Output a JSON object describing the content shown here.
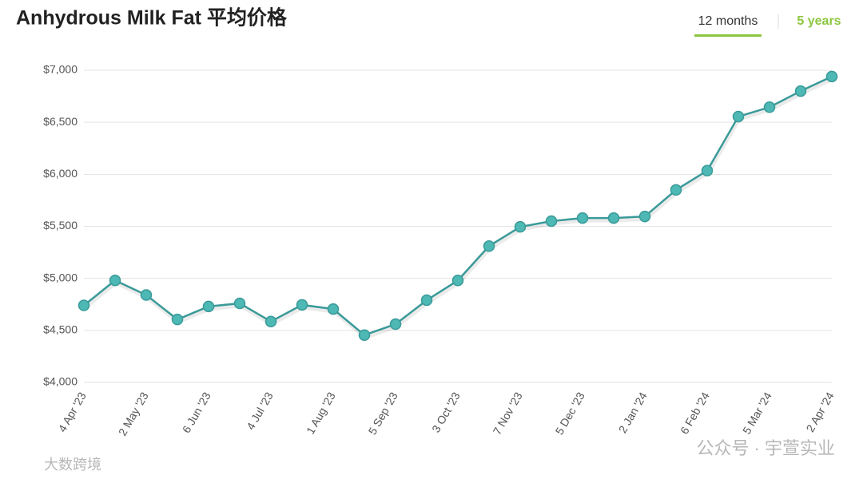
{
  "chart_data": {
    "type": "line",
    "title": "Anhydrous Milk Fat 平均价格",
    "tabs": [
      "12 months",
      "5 years"
    ],
    "watermarks": [
      "公众号 · 宇萱实业",
      "大数跨境"
    ],
    "categories": [
      "4 Apr '23",
      null,
      "2 May '23",
      null,
      "6 Jun '23",
      null,
      "4 Jul '23",
      null,
      "1 Aug '23",
      null,
      "5 Sep '23",
      null,
      "3 Oct '23",
      null,
      "7 Nov '23",
      null,
      "5 Dec '23",
      null,
      "2 Jan '24",
      null,
      "6 Feb '24",
      null,
      "5 Mar '24",
      null,
      "2 Apr '24"
    ],
    "values": [
      4740,
      4980,
      4840,
      4605,
      4730,
      4760,
      4585,
      4745,
      4705,
      4455,
      4560,
      4790,
      4980,
      5310,
      5495,
      5550,
      5580,
      5580,
      5595,
      5850,
      6035,
      6555,
      6645,
      6800,
      6940
    ],
    "color": "#3a9a99",
    "marker_color": "#4db8b4",
    "ylim": [
      4000,
      7000
    ],
    "yticks": [
      {
        "value": 4000,
        "label": "$4,000"
      },
      {
        "value": 4500,
        "label": "$4,500"
      },
      {
        "value": 5000,
        "label": "$5,000"
      },
      {
        "value": 5500,
        "label": "$5,500"
      },
      {
        "value": 6000,
        "label": "$6,000"
      },
      {
        "value": 6500,
        "label": "$6,500"
      },
      {
        "value": 7000,
        "label": "$7,000"
      }
    ],
    "grid": true
  }
}
